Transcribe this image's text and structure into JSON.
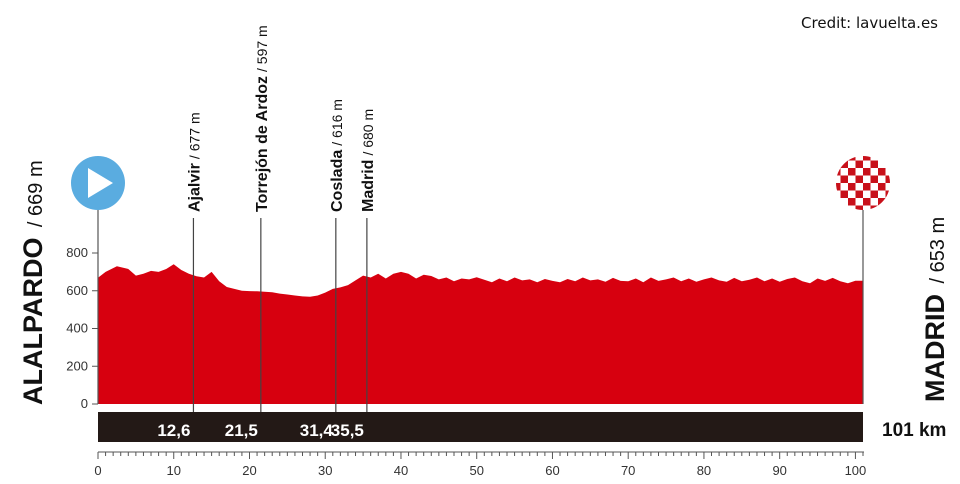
{
  "credit": "Credit: lavuelta.es",
  "colors": {
    "profile_fill": "#d7000f",
    "bar_fill": "#231916",
    "start_icon": "#5aace0",
    "finish_icon": "#c8101a",
    "text": "#111111"
  },
  "start": {
    "name": "ALALPARDO",
    "altitude": "/ 669 m",
    "icon": "play-icon"
  },
  "finish": {
    "name": "MADRID",
    "altitude": "/ 653 m",
    "icon": "checkered-flag-icon"
  },
  "total_distance": "101 km",
  "waypoints": [
    {
      "name": "Ajalvir",
      "altitude": "/ 677 m",
      "km": 12.6,
      "km_label": "12,6"
    },
    {
      "name": "Torrejón de Ardoz",
      "altitude": "/ 597 m",
      "km": 21.5,
      "km_label": "21,5"
    },
    {
      "name": "Coslada",
      "altitude": "/ 616 m",
      "km": 31.4,
      "km_label": "31,4"
    },
    {
      "name": "Madrid",
      "altitude": "/ 680 m",
      "km": 35.5,
      "km_label": "35,5"
    }
  ],
  "chart_data": {
    "type": "area",
    "title": "",
    "xlabel": "",
    "ylabel": "",
    "xlim": [
      0,
      101
    ],
    "ylim": [
      0,
      800
    ],
    "x_ticks": [
      0,
      10,
      20,
      30,
      40,
      50,
      60,
      70,
      80,
      90,
      100
    ],
    "y_ticks": [
      0,
      200,
      400,
      600,
      800
    ],
    "grid": false,
    "series": [
      {
        "x": [
          0,
          1,
          2.5,
          4,
          5,
          6,
          7,
          8,
          9,
          10,
          11,
          12,
          13,
          14,
          15,
          16,
          17,
          18,
          19,
          20,
          21,
          22,
          23,
          24,
          25,
          26,
          27,
          28,
          29,
          30,
          31,
          32,
          33,
          34,
          35,
          36,
          37,
          38,
          39,
          40,
          41,
          42,
          43,
          44,
          45,
          46,
          47,
          48,
          49,
          50,
          51,
          52,
          53,
          54,
          55,
          56,
          57,
          58,
          59,
          60,
          61,
          62,
          63,
          64,
          65,
          66,
          67,
          68,
          69,
          70,
          71,
          72,
          73,
          74,
          75,
          76,
          77,
          78,
          79,
          80,
          81,
          82,
          83,
          84,
          85,
          86,
          87,
          88,
          89,
          90,
          91,
          92,
          93,
          94,
          95,
          96,
          97,
          98,
          99,
          100,
          101
        ],
        "y": [
          669,
          700,
          730,
          715,
          680,
          690,
          705,
          700,
          715,
          740,
          710,
          690,
          677,
          670,
          700,
          650,
          620,
          610,
          600,
          598,
          597,
          595,
          592,
          585,
          580,
          575,
          570,
          568,
          575,
          590,
          610,
          618,
          630,
          655,
          680,
          670,
          690,
          665,
          690,
          700,
          690,
          665,
          685,
          678,
          660,
          670,
          650,
          665,
          660,
          672,
          658,
          645,
          665,
          650,
          670,
          655,
          660,
          645,
          662,
          652,
          645,
          662,
          650,
          670,
          655,
          660,
          648,
          668,
          652,
          650,
          665,
          645,
          670,
          652,
          660,
          670,
          650,
          665,
          648,
          660,
          670,
          655,
          648,
          668,
          650,
          658,
          670,
          650,
          665,
          648,
          662,
          670,
          650,
          640,
          665,
          652,
          668,
          650,
          640,
          653,
          653
        ]
      }
    ]
  }
}
